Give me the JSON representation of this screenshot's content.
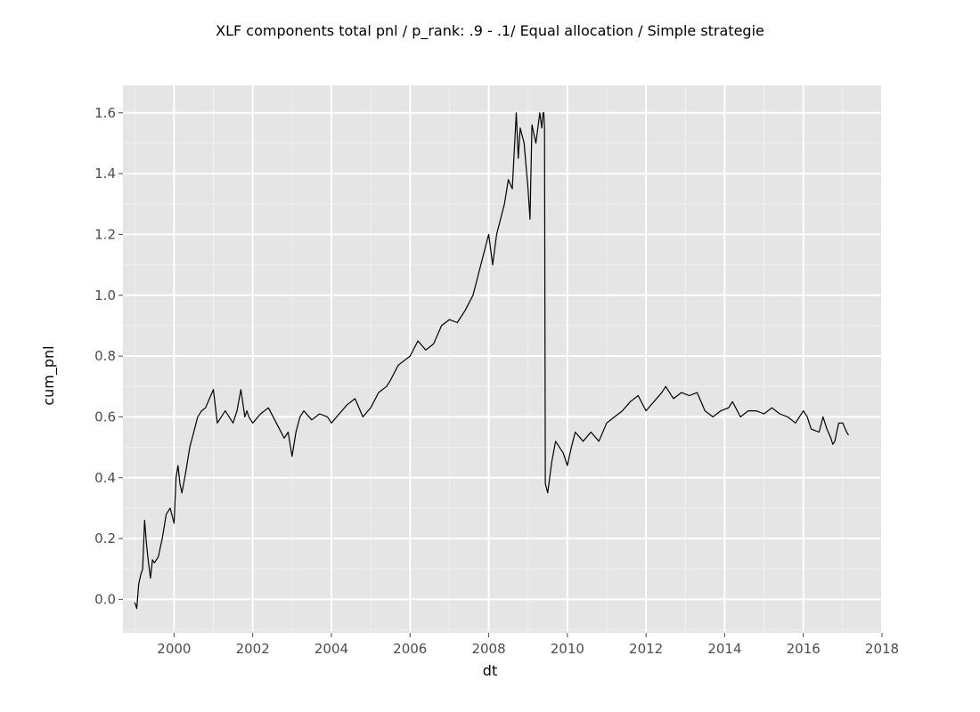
{
  "chart_data": {
    "type": "line",
    "title": "XLF components total pnl / p_rank: .9 - .1/ Equal allocation / Simple strategie",
    "xlabel": "dt",
    "ylabel": "cum_pnl",
    "xlim": [
      1998.7,
      2018.0
    ],
    "ylim": [
      -0.11,
      1.69
    ],
    "x_ticks": [
      2000,
      2002,
      2004,
      2006,
      2008,
      2010,
      2012,
      2014,
      2016,
      2018
    ],
    "x_tick_labels": [
      "2000",
      "2002",
      "2004",
      "2006",
      "2008",
      "2010",
      "2012",
      "2014",
      "2016",
      "2018"
    ],
    "y_ticks": [
      0.0,
      0.2,
      0.4,
      0.6,
      0.8,
      1.0,
      1.2,
      1.4,
      1.6
    ],
    "y_tick_labels": [
      "0.0",
      "0.2",
      "0.4",
      "0.6",
      "0.8",
      "1.0",
      "1.2",
      "1.4",
      "1.6"
    ],
    "grid": true,
    "colors": {
      "panel_background": "#e5e5e5",
      "line": "#000000"
    },
    "series": [
      {
        "x": [
          1999.0,
          1999.05,
          1999.1,
          1999.15,
          1999.2,
          1999.25,
          1999.3,
          1999.35,
          1999.4,
          1999.45,
          1999.5,
          1999.6,
          1999.7,
          1999.8,
          1999.9,
          2000.0,
          2000.05,
          2000.1,
          2000.15,
          2000.2,
          2000.3,
          2000.4,
          2000.5,
          2000.6,
          2000.7,
          2000.8,
          2000.9,
          2001.0,
          2001.1,
          2001.2,
          2001.3,
          2001.4,
          2001.5,
          2001.6,
          2001.7,
          2001.8,
          2001.85,
          2001.9,
          2002.0,
          2002.2,
          2002.4,
          2002.6,
          2002.8,
          2002.9,
          2003.0,
          2003.1,
          2003.2,
          2003.3,
          2003.5,
          2003.7,
          2003.9,
          2004.0,
          2004.2,
          2004.4,
          2004.6,
          2004.8,
          2005.0,
          2005.2,
          2005.4,
          2005.5,
          2005.7,
          2006.0,
          2006.2,
          2006.4,
          2006.6,
          2006.8,
          2007.0,
          2007.2,
          2007.4,
          2007.6,
          2007.8,
          2007.9,
          2008.0,
          2008.1,
          2008.2,
          2008.3,
          2008.4,
          2008.5,
          2008.6,
          2008.7,
          2008.75,
          2008.8,
          2008.9,
          2009.0,
          2009.05,
          2009.1,
          2009.2,
          2009.3,
          2009.35,
          2009.38,
          2009.4,
          2009.42,
          2009.44,
          2009.5,
          2009.6,
          2009.7,
          2009.8,
          2009.9,
          2010.0,
          2010.1,
          2010.2,
          2010.4,
          2010.6,
          2010.8,
          2011.0,
          2011.2,
          2011.4,
          2011.6,
          2011.8,
          2012.0,
          2012.2,
          2012.4,
          2012.5,
          2012.7,
          2012.9,
          2013.1,
          2013.3,
          2013.5,
          2013.7,
          2013.9,
          2014.1,
          2014.2,
          2014.4,
          2014.6,
          2014.8,
          2015.0,
          2015.2,
          2015.4,
          2015.6,
          2015.8,
          2016.0,
          2016.1,
          2016.2,
          2016.4,
          2016.5,
          2016.6,
          2016.7,
          2016.75,
          2016.8,
          2016.9,
          2017.0,
          2017.1,
          2017.15
        ],
        "y": [
          -0.01,
          -0.03,
          0.05,
          0.08,
          0.1,
          0.26,
          0.18,
          0.12,
          0.07,
          0.13,
          0.12,
          0.14,
          0.2,
          0.28,
          0.3,
          0.25,
          0.4,
          0.44,
          0.38,
          0.35,
          0.42,
          0.5,
          0.55,
          0.6,
          0.62,
          0.63,
          0.66,
          0.69,
          0.58,
          0.6,
          0.62,
          0.6,
          0.58,
          0.62,
          0.69,
          0.6,
          0.62,
          0.6,
          0.58,
          0.61,
          0.63,
          0.58,
          0.53,
          0.55,
          0.47,
          0.55,
          0.6,
          0.62,
          0.59,
          0.61,
          0.6,
          0.58,
          0.61,
          0.64,
          0.66,
          0.6,
          0.63,
          0.68,
          0.7,
          0.72,
          0.77,
          0.8,
          0.85,
          0.82,
          0.84,
          0.9,
          0.92,
          0.91,
          0.95,
          1.0,
          1.1,
          1.15,
          1.2,
          1.1,
          1.2,
          1.25,
          1.3,
          1.38,
          1.35,
          1.6,
          1.45,
          1.55,
          1.5,
          1.35,
          1.25,
          1.56,
          1.5,
          1.6,
          1.55,
          1.6,
          1.6,
          1.55,
          0.38,
          0.35,
          0.45,
          0.52,
          0.5,
          0.48,
          0.44,
          0.5,
          0.55,
          0.52,
          0.55,
          0.52,
          0.58,
          0.6,
          0.62,
          0.65,
          0.67,
          0.62,
          0.65,
          0.68,
          0.7,
          0.66,
          0.68,
          0.67,
          0.68,
          0.62,
          0.6,
          0.62,
          0.63,
          0.65,
          0.6,
          0.62,
          0.62,
          0.61,
          0.63,
          0.61,
          0.6,
          0.58,
          0.62,
          0.6,
          0.56,
          0.55,
          0.6,
          0.56,
          0.53,
          0.51,
          0.52,
          0.58,
          0.58,
          0.55,
          0.54
        ]
      }
    ]
  }
}
